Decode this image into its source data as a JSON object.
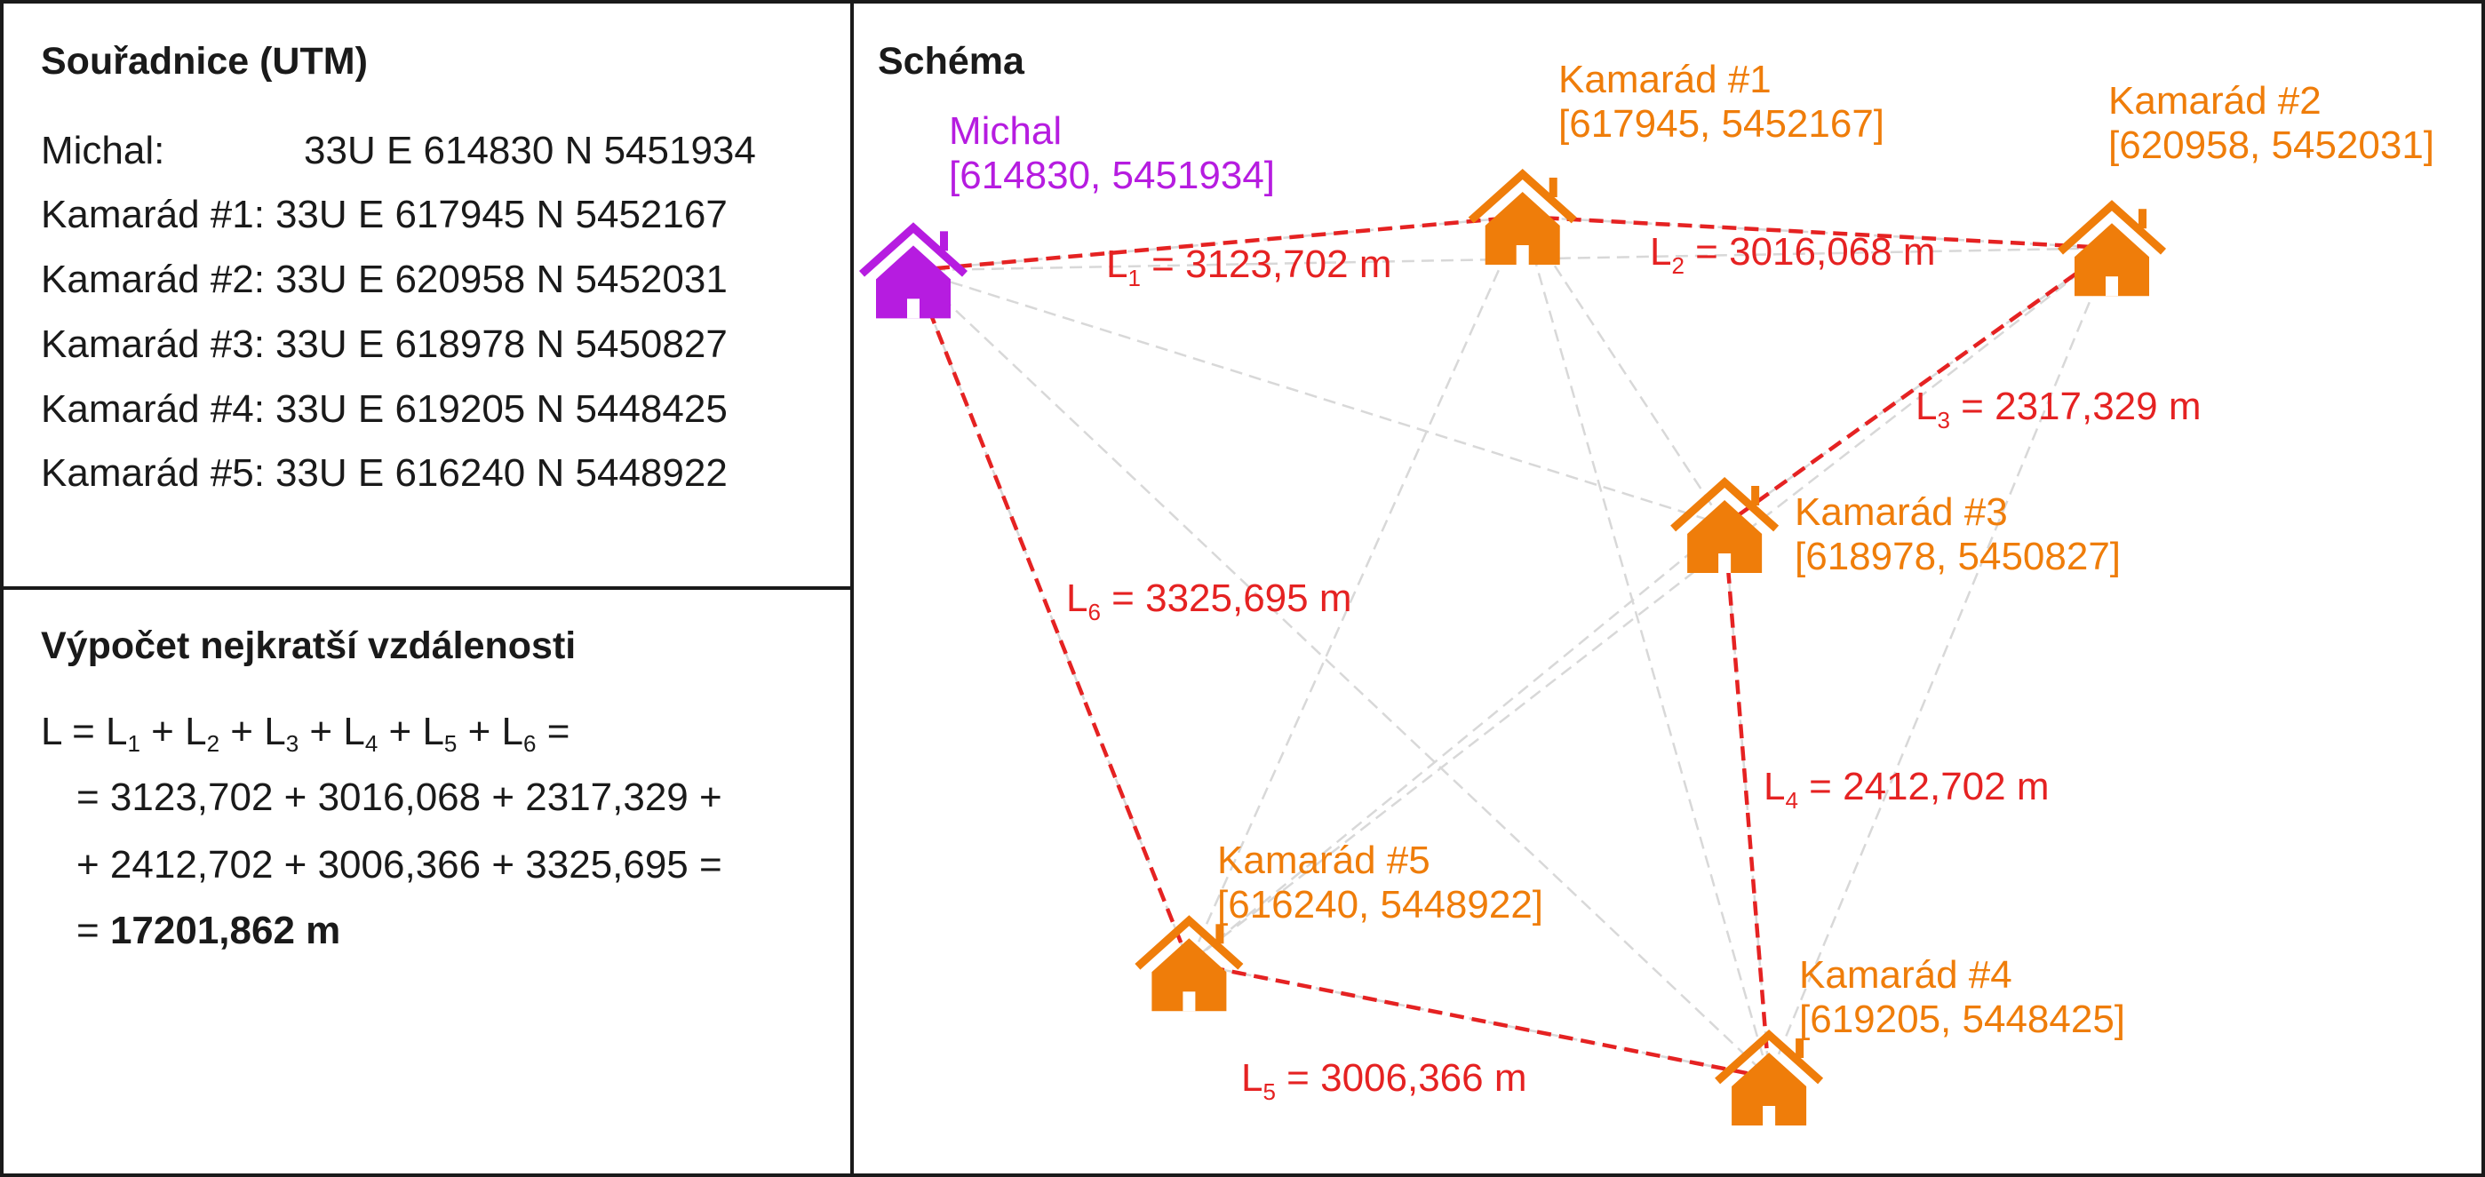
{
  "coords_panel": {
    "title": "Souřadnice (UTM)",
    "rows": [
      {
        "name": "Michal:",
        "value": "33U E 614830 N 5451934"
      },
      {
        "name": "Kamarád #1:",
        "value": "33U E 617945 N 5452167"
      },
      {
        "name": "Kamarád #2:",
        "value": "33U E 620958 N 5452031"
      },
      {
        "name": "Kamarád #3:",
        "value": "33U E 618978 N 5450827"
      },
      {
        "name": "Kamarád #4:",
        "value": "33U E 619205 N 5448425"
      },
      {
        "name": "Kamarád #5:",
        "value": "33U E 616240 N 5448922"
      }
    ]
  },
  "calc_panel": {
    "title": "Výpočet nejkratší vzdálenosti",
    "formula_lhs": "L",
    "formula_terms": [
      "L",
      "L",
      "L",
      "L",
      "L",
      "L"
    ],
    "formula_subscripts": [
      "1",
      "2",
      "3",
      "4",
      "5",
      "6"
    ],
    "sum_line1": "= 3123,702 + 3016,068 + 2317,329 +",
    "sum_line2": "+ 2412,702 + 3006,366 + 3325,695 =",
    "result_prefix": "=",
    "result": "17201,862 m"
  },
  "schema": {
    "title": "Schéma",
    "colors": {
      "michal": "#b61ce0",
      "friend": "#ef7d0a",
      "route": "#e52222",
      "other": "#d8d8d8"
    },
    "icon": "house-icon",
    "nodes": [
      {
        "id": "michal",
        "label": "Michal",
        "coord": "[614830, 5451934]",
        "e": 614830,
        "n": 5451934
      },
      {
        "id": "k1",
        "label": "Kamarád #1",
        "coord": "[617945, 5452167]",
        "e": 617945,
        "n": 5452167
      },
      {
        "id": "k2",
        "label": "Kamarád #2",
        "coord": "[620958, 5452031]",
        "e": 620958,
        "n": 5452031
      },
      {
        "id": "k3",
        "label": "Kamarád #3",
        "coord": "[618978, 5450827]",
        "e": 618978,
        "n": 5450827
      },
      {
        "id": "k4",
        "label": "Kamarád #4",
        "coord": "[619205, 5448425]",
        "e": 619205,
        "n": 5448425
      },
      {
        "id": "k5",
        "label": "Kamarád #5",
        "coord": "[616240, 5448922]",
        "e": 616240,
        "n": 5448922
      }
    ],
    "route": [
      {
        "from": "michal",
        "to": "k1",
        "label": "L",
        "sub": "1",
        "text": " = 3123,702 m"
      },
      {
        "from": "k1",
        "to": "k2",
        "label": "L",
        "sub": "2",
        "text": " = 3016,068 m"
      },
      {
        "from": "k2",
        "to": "k3",
        "label": "L",
        "sub": "3",
        "text": " = 2317,329 m"
      },
      {
        "from": "k3",
        "to": "k4",
        "label": "L",
        "sub": "4",
        "text": " = 2412,702 m"
      },
      {
        "from": "k4",
        "to": "k5",
        "label": "L",
        "sub": "5",
        "text": " = 3006,366 m"
      },
      {
        "from": "k5",
        "to": "michal",
        "label": "L",
        "sub": "6",
        "text": " = 3325,695 m"
      }
    ]
  }
}
